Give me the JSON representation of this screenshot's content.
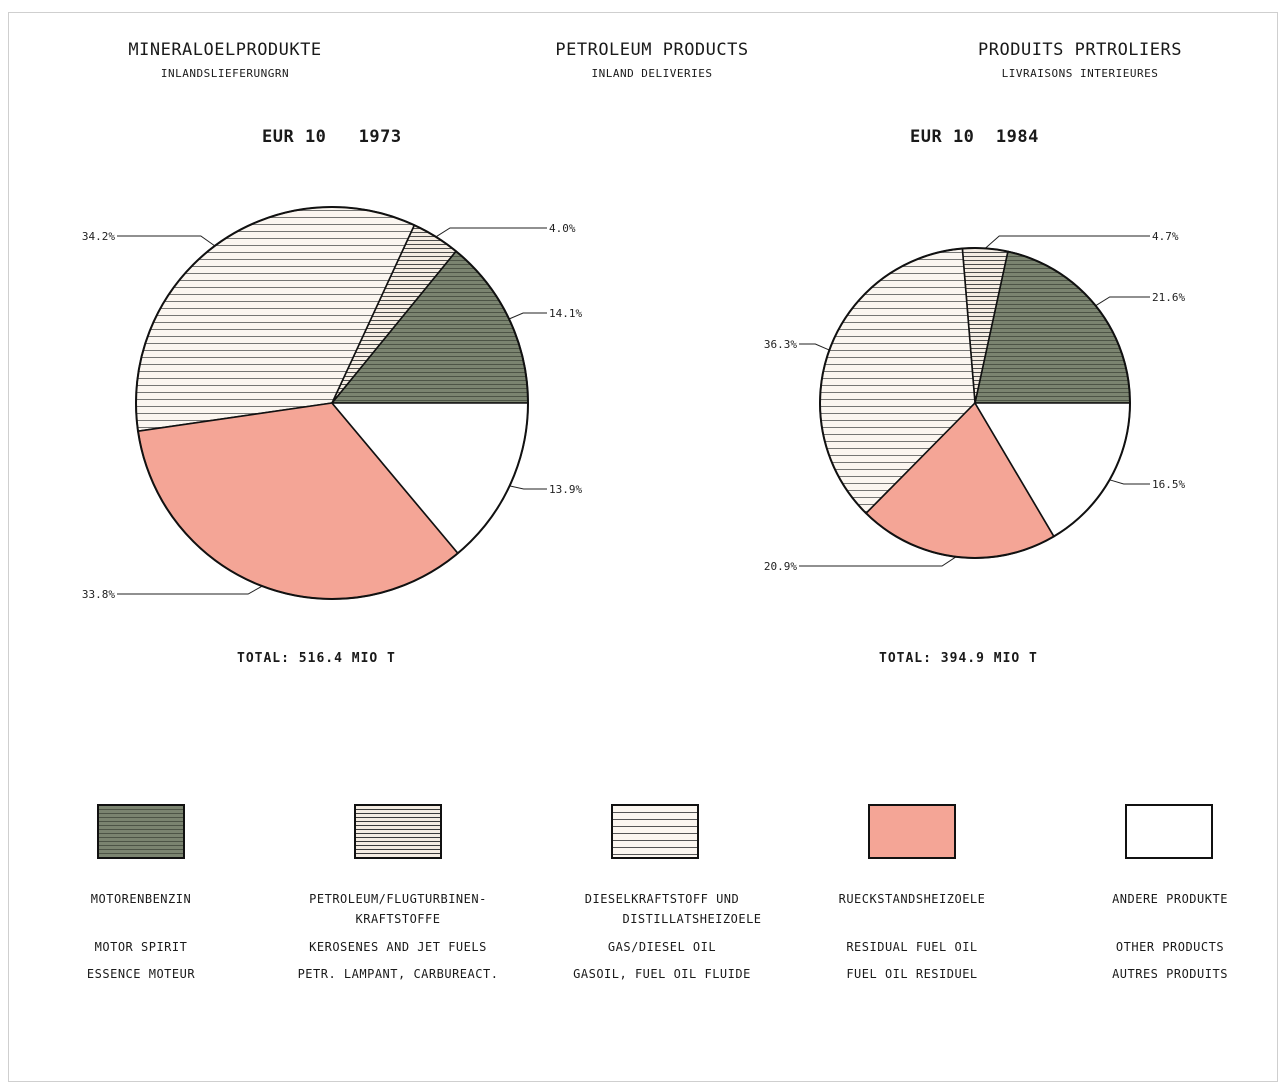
{
  "headers": {
    "german": {
      "title": "MINERALOELPRODUKTE",
      "subtitle": "INLANDSLIEFERUNGRN"
    },
    "english": {
      "title": "PETROLEUM PRODUCTS",
      "subtitle": "INLAND DELIVERIES"
    },
    "french": {
      "title": "PRODUITS PRTROLIERS",
      "subtitle": "LIVRAISONS INTERIEURES"
    }
  },
  "categories": [
    {
      "key": "motor",
      "de": "MOTORENBENZIN",
      "de2": "",
      "en": "MOTOR SPIRIT",
      "fr": "ESSENCE MOTEUR",
      "color": "#7b8470",
      "pattern": "dark-hatch"
    },
    {
      "key": "kero",
      "de": "PETROLEUM/FLUGTURBINEN-",
      "de2": "KRAFTSTOFFE",
      "en": "KEROSENES AND JET FUELS",
      "fr": "PETR. LAMPANT, CARBUREACT.",
      "color": "#f4ece2",
      "pattern": "dense-lines"
    },
    {
      "key": "diesel",
      "de": "DIESELKRAFTSTOFF UND",
      "de2": "DISTILLATSHEIZOELE",
      "en": "GAS/DIESEL OIL",
      "fr": "GASOIL, FUEL OIL FLUIDE",
      "color": "#fbf6f0",
      "pattern": "sparse-lines"
    },
    {
      "key": "residual",
      "de": "RUECKSTANDSHEIZOELE",
      "de2": "",
      "en": "RESIDUAL FUEL OIL",
      "fr": "FUEL OIL RESIDUEL",
      "color": "#f4a596",
      "pattern": "solid"
    },
    {
      "key": "other",
      "de": "ANDERE PRODUKTE",
      "de2": "",
      "en": "OTHER PRODUCTS",
      "fr": "AUTRES PRODUITS",
      "color": "#ffffff",
      "pattern": "solid"
    }
  ],
  "chart_data": [
    {
      "type": "pie",
      "title": "EUR 10   1973",
      "total_label": "TOTAL: 516.4 MIO T",
      "slices": [
        {
          "category": "motor",
          "value": 14.1,
          "label": "14.1%"
        },
        {
          "category": "kero",
          "value": 4.0,
          "label": "4.0%"
        },
        {
          "category": "diesel",
          "value": 34.2,
          "label": "34.2%"
        },
        {
          "category": "residual",
          "value": 33.8,
          "label": "33.8%"
        },
        {
          "category": "other",
          "value": 13.9,
          "label": "13.9%"
        }
      ]
    },
    {
      "type": "pie",
      "title": "EUR 10  1984",
      "total_label": "TOTAL: 394.9 MIO T",
      "slices": [
        {
          "category": "motor",
          "value": 21.6,
          "label": "21.6%"
        },
        {
          "category": "kero",
          "value": 4.7,
          "label": "4.7%"
        },
        {
          "category": "diesel",
          "value": 36.3,
          "label": "36.3%"
        },
        {
          "category": "residual",
          "value": 20.9,
          "label": "20.9%"
        },
        {
          "category": "other",
          "value": 16.5,
          "label": "16.5%"
        }
      ]
    }
  ]
}
